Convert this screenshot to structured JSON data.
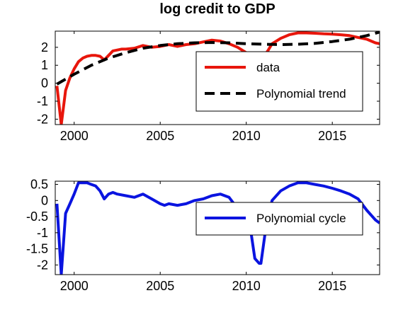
{
  "chart_data": [
    {
      "type": "line",
      "title": "log credit to GDP",
      "xlabel": "",
      "ylabel": "",
      "xlim": [
        1998.9,
        2017.75
      ],
      "ylim": [
        -2.3,
        2.9
      ],
      "xticks": [
        2000,
        2005,
        2010,
        2015
      ],
      "yticks": [
        -2,
        -1,
        0,
        1,
        2
      ],
      "grid": false,
      "legend_position": "center-right",
      "series": [
        {
          "name": "data",
          "color": "#e8160c",
          "style": "solid",
          "x": [
            1999.0,
            1999.25,
            1999.5,
            1999.75,
            2000.0,
            2000.25,
            2000.5,
            2000.75,
            2001.0,
            2001.25,
            2001.5,
            2001.75,
            2002.0,
            2002.25,
            2002.5,
            2002.75,
            2003.0,
            2003.5,
            2004.0,
            2004.5,
            2005.0,
            2005.5,
            2006.0,
            2006.5,
            2007.0,
            2007.5,
            2008.0,
            2008.5,
            2009.0,
            2009.5,
            2010.0,
            2010.5,
            2010.85,
            2011.25,
            2011.5,
            2012.0,
            2012.5,
            2013.0,
            2013.5,
            2014.0,
            2014.5,
            2015.0,
            2015.5,
            2016.0,
            2016.5,
            2017.0,
            2017.5,
            2017.75
          ],
          "y": [
            -0.15,
            -2.3,
            -0.4,
            0.3,
            0.8,
            1.2,
            1.4,
            1.5,
            1.55,
            1.55,
            1.5,
            1.3,
            1.55,
            1.8,
            1.85,
            1.9,
            1.9,
            1.95,
            2.1,
            2.0,
            2.05,
            2.15,
            2.05,
            2.15,
            2.2,
            2.3,
            2.4,
            2.35,
            2.2,
            2.0,
            1.7,
            1.2,
            1.3,
            1.8,
            2.2,
            2.5,
            2.7,
            2.8,
            2.8,
            2.78,
            2.75,
            2.73,
            2.7,
            2.65,
            2.55,
            2.45,
            2.25,
            2.2
          ]
        },
        {
          "name": "Polynomial trend",
          "color": "#000000",
          "style": "dashed",
          "x": [
            1999.0,
            2000.0,
            2001.0,
            2002.0,
            2003.0,
            2004.0,
            2005.0,
            2006.0,
            2007.0,
            2008.0,
            2009.0,
            2010.0,
            2011.0,
            2012.0,
            2013.0,
            2014.0,
            2015.0,
            2016.0,
            2017.0,
            2017.75
          ],
          "y": [
            -0.05,
            0.5,
            1.0,
            1.4,
            1.7,
            1.95,
            2.1,
            2.2,
            2.25,
            2.27,
            2.25,
            2.2,
            2.17,
            2.15,
            2.17,
            2.22,
            2.32,
            2.45,
            2.65,
            2.85
          ]
        }
      ]
    },
    {
      "type": "line",
      "title": "",
      "xlabel": "",
      "ylabel": "",
      "xlim": [
        1998.9,
        2017.75
      ],
      "ylim": [
        -2.3,
        0.6
      ],
      "xticks": [
        2000,
        2005,
        2010,
        2015
      ],
      "yticks": [
        0.5,
        0,
        -0.5,
        -1,
        -1.5,
        -2
      ],
      "ytick_labels": [
        "0.5",
        "0",
        "-0.5",
        "-1",
        "-1.5",
        "-2"
      ],
      "grid": false,
      "legend_position": "right",
      "series": [
        {
          "name": "Polynomial cycle",
          "color": "#0a14e0",
          "style": "solid",
          "x": [
            1999.0,
            1999.25,
            1999.5,
            1999.75,
            2000.0,
            2000.25,
            2000.5,
            2000.75,
            2001.0,
            2001.25,
            2001.5,
            2001.75,
            2002.0,
            2002.25,
            2002.5,
            2003.0,
            2003.5,
            2003.75,
            2004.0,
            2004.5,
            2005.0,
            2005.25,
            2005.5,
            2006.0,
            2006.5,
            2007.0,
            2007.5,
            2008.0,
            2008.5,
            2008.75,
            2009.0,
            2009.5,
            2010.0,
            2010.25,
            2010.5,
            2010.75,
            2010.85,
            2011.1,
            2011.5,
            2012.0,
            2012.5,
            2013.0,
            2013.5,
            2014.0,
            2014.5,
            2015.0,
            2015.5,
            2016.0,
            2016.5,
            2017.0,
            2017.5,
            2017.75
          ],
          "y": [
            -0.1,
            -2.3,
            -0.4,
            -0.1,
            0.2,
            0.55,
            0.55,
            0.55,
            0.5,
            0.45,
            0.3,
            0.05,
            0.2,
            0.25,
            0.2,
            0.15,
            0.1,
            0.15,
            0.2,
            0.05,
            -0.1,
            -0.15,
            -0.1,
            -0.15,
            -0.1,
            0.0,
            0.05,
            0.15,
            0.2,
            0.15,
            0.1,
            -0.25,
            -0.5,
            -0.9,
            -1.8,
            -1.95,
            -1.95,
            -1.0,
            0.0,
            0.3,
            0.45,
            0.55,
            0.55,
            0.5,
            0.45,
            0.38,
            0.3,
            0.2,
            0.05,
            -0.3,
            -0.6,
            -0.7
          ]
        }
      ]
    }
  ]
}
